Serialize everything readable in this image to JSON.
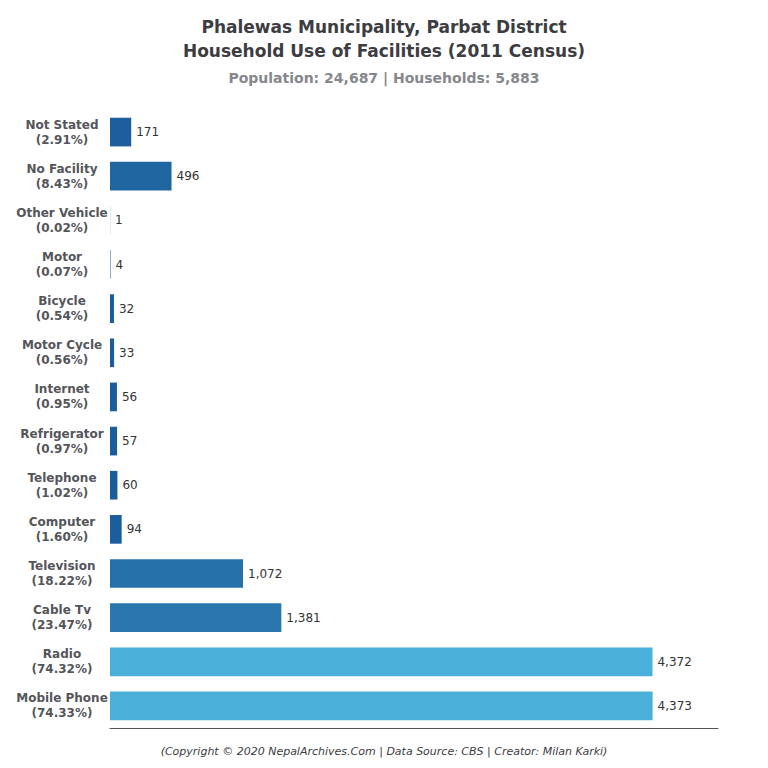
{
  "chart_data": {
    "type": "bar",
    "orientation": "horizontal",
    "title": "Phalewas Municipality, Parbat District\nHousehold Use of Facilities (2011 Census)",
    "subtitle": "Population: 24,687 | Households: 5,883",
    "annotations": [
      "(Copyright © 2020 NepalArchives.Com | Data Source: CBS | Creator: Milan Karki)"
    ],
    "categories": [
      "Not Stated\n(2.91%)",
      "No Facility\n(8.43%)",
      "Other Vehicle\n(0.02%)",
      "Motor\n(0.07%)",
      "Bicycle\n(0.54%)",
      "Motor Cycle\n(0.56%)",
      "Internet\n(0.95%)",
      "Refrigerator\n(0.97%)",
      "Telephone\n(1.02%)",
      "Computer\n(1.60%)",
      "Television\n(18.22%)",
      "Cable Tv\n(23.47%)",
      "Radio\n(74.32%)",
      "Mobile Phone\n(74.33%)"
    ],
    "values": [
      171,
      496,
      1,
      4,
      32,
      33,
      56,
      57,
      60,
      94,
      1072,
      1381,
      4372,
      4373
    ],
    "value_labels": [
      "171",
      "496",
      "1",
      "4",
      "32",
      "33",
      "56",
      "57",
      "60",
      "94",
      "1,072",
      "1,381",
      "4,372",
      "4,373"
    ],
    "colors": [
      "#1c5f9c",
      "#1f66a1",
      "#1a5c9a",
      "#1a5c9a",
      "#1a5d9a",
      "#1a5d9a",
      "#1b5d9b",
      "#1b5d9b",
      "#1b5d9b",
      "#1b5e9b",
      "#2671a9",
      "#2977ae",
      "#4ab0d9",
      "#4ab0d9"
    ],
    "xlim": [
      0,
      4900
    ],
    "data_labels": true,
    "tick_labels": "y",
    "grid": false
  }
}
